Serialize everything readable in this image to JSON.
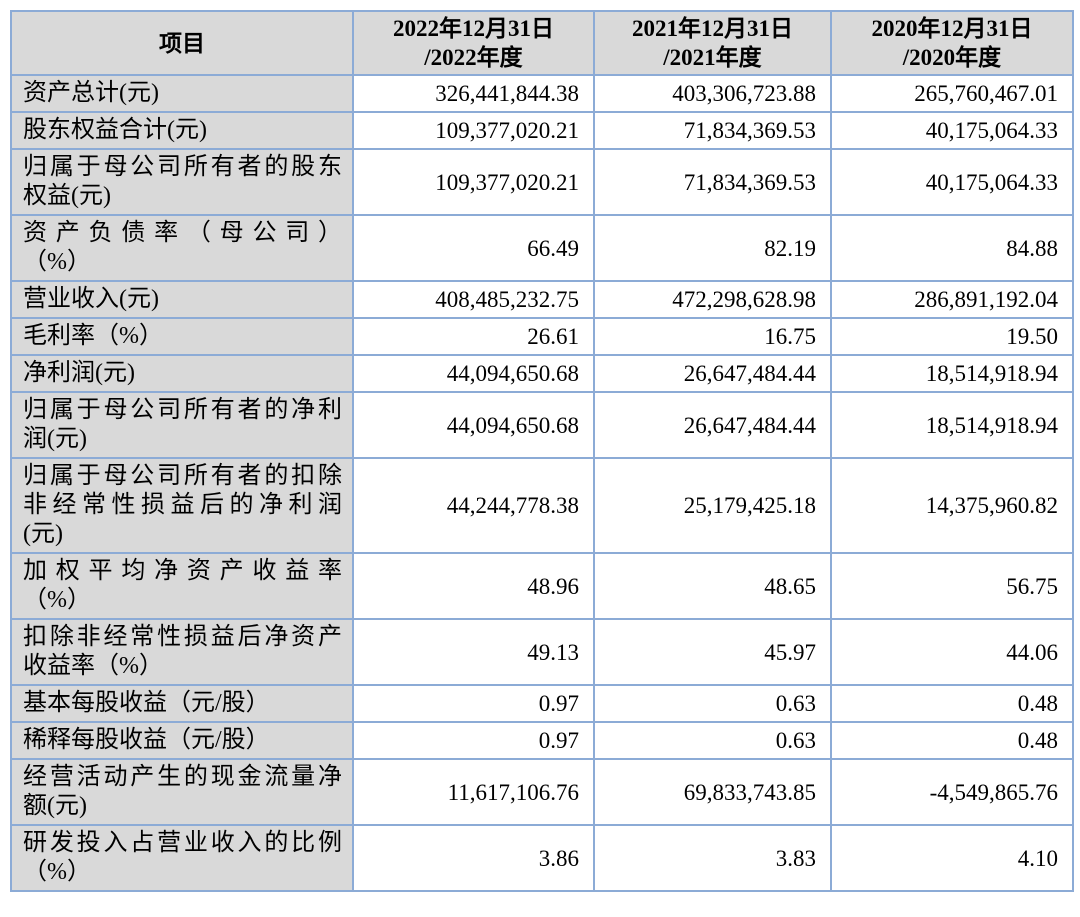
{
  "table": {
    "columns": {
      "item_header": "项目",
      "period_headers": [
        "2022年12月31日\n/2022年度",
        "2021年12月31日\n/2021年度",
        "2020年12月31日\n/2020年度"
      ]
    },
    "rows": [
      {
        "label_lines": [
          "资产总计(元)"
        ],
        "values": [
          "326,441,844.38",
          "403,306,723.88",
          "265,760,467.01"
        ]
      },
      {
        "label_lines": [
          "股东权益合计(元)"
        ],
        "values": [
          "109,377,020.21",
          "71,834,369.53",
          "40,175,064.33"
        ]
      },
      {
        "label_lines": [
          "归属于母公司所有者的股东",
          "权益(元)"
        ],
        "values": [
          "109,377,020.21",
          "71,834,369.53",
          "40,175,064.33"
        ]
      },
      {
        "label_lines": [
          "资产负债率（母公司）",
          "（%）"
        ],
        "values": [
          "66.49",
          "82.19",
          "84.88"
        ]
      },
      {
        "label_lines": [
          "营业收入(元)"
        ],
        "values": [
          "408,485,232.75",
          "472,298,628.98",
          "286,891,192.04"
        ]
      },
      {
        "label_lines": [
          "毛利率（%）"
        ],
        "values": [
          "26.61",
          "16.75",
          "19.50"
        ]
      },
      {
        "label_lines": [
          "净利润(元)"
        ],
        "values": [
          "44,094,650.68",
          "26,647,484.44",
          "18,514,918.94"
        ]
      },
      {
        "label_lines": [
          "归属于母公司所有者的净利",
          "润(元)"
        ],
        "values": [
          "44,094,650.68",
          "26,647,484.44",
          "18,514,918.94"
        ]
      },
      {
        "label_lines": [
          "归属于母公司所有者的扣除",
          "非经常性损益后的净利润",
          "(元)"
        ],
        "values": [
          "44,244,778.38",
          "25,179,425.18",
          "14,375,960.82"
        ]
      },
      {
        "label_lines": [
          "加权平均净资产收益率",
          "（%）"
        ],
        "values": [
          "48.96",
          "48.65",
          "56.75"
        ]
      },
      {
        "label_lines": [
          "扣除非经常性损益后净资产",
          "收益率（%）"
        ],
        "values": [
          "49.13",
          "45.97",
          "44.06"
        ]
      },
      {
        "label_lines": [
          "基本每股收益（元/股）"
        ],
        "values": [
          "0.97",
          "0.63",
          "0.48"
        ]
      },
      {
        "label_lines": [
          "稀释每股收益（元/股）"
        ],
        "values": [
          "0.97",
          "0.63",
          "0.48"
        ]
      },
      {
        "label_lines": [
          "经营活动产生的现金流量净",
          "额(元)"
        ],
        "values": [
          "11,617,106.76",
          "69,833,743.85",
          "-4,549,865.76"
        ]
      },
      {
        "label_lines": [
          "研发投入占营业收入的比例",
          "（%）"
        ],
        "values": [
          "3.86",
          "3.83",
          "4.10"
        ]
      }
    ]
  },
  "colors": {
    "border": "#8cabd6",
    "header_bg": "#d9d9d9",
    "label_bg": "#d9d9d9",
    "value_bg": "#ffffff",
    "text": "#000000"
  }
}
